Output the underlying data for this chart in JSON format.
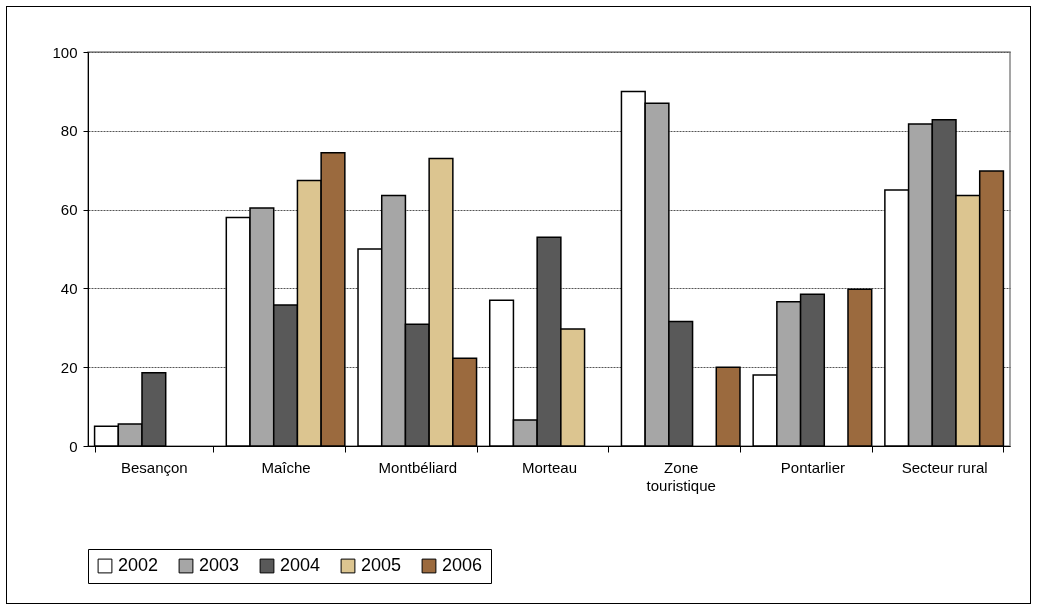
{
  "chart_data": {
    "type": "bar",
    "categories": [
      "Besançon",
      "Maîche",
      "Montbéliard",
      "Morteau",
      "Zone touristique",
      "Pontarlier",
      "Secteur rural"
    ],
    "series": [
      {
        "name": "2002",
        "color": "#ffffff",
        "values": [
          5,
          58,
          50,
          37,
          90,
          18,
          65
        ]
      },
      {
        "name": "2003",
        "color": "#a6a6a6",
        "values": [
          5.6,
          60.4,
          63.6,
          6.6,
          87,
          36.6,
          81.7
        ]
      },
      {
        "name": "2004",
        "color": "#595959",
        "values": [
          18.6,
          35.8,
          30.9,
          53,
          31.6,
          38.5,
          82.8
        ]
      },
      {
        "name": "2005",
        "color": "#dcc590",
        "values": [
          null,
          67.4,
          73,
          29.7,
          null,
          null,
          63.6
        ]
      },
      {
        "name": "2006",
        "color": "#9b6a3e",
        "values": [
          null,
          74.4,
          22.3,
          null,
          20,
          39.8,
          69.8
        ]
      }
    ],
    "ylim": [
      0,
      100
    ],
    "yticks": [
      0,
      20,
      40,
      60,
      80,
      100
    ],
    "grid": "y",
    "legend": "bottom"
  }
}
